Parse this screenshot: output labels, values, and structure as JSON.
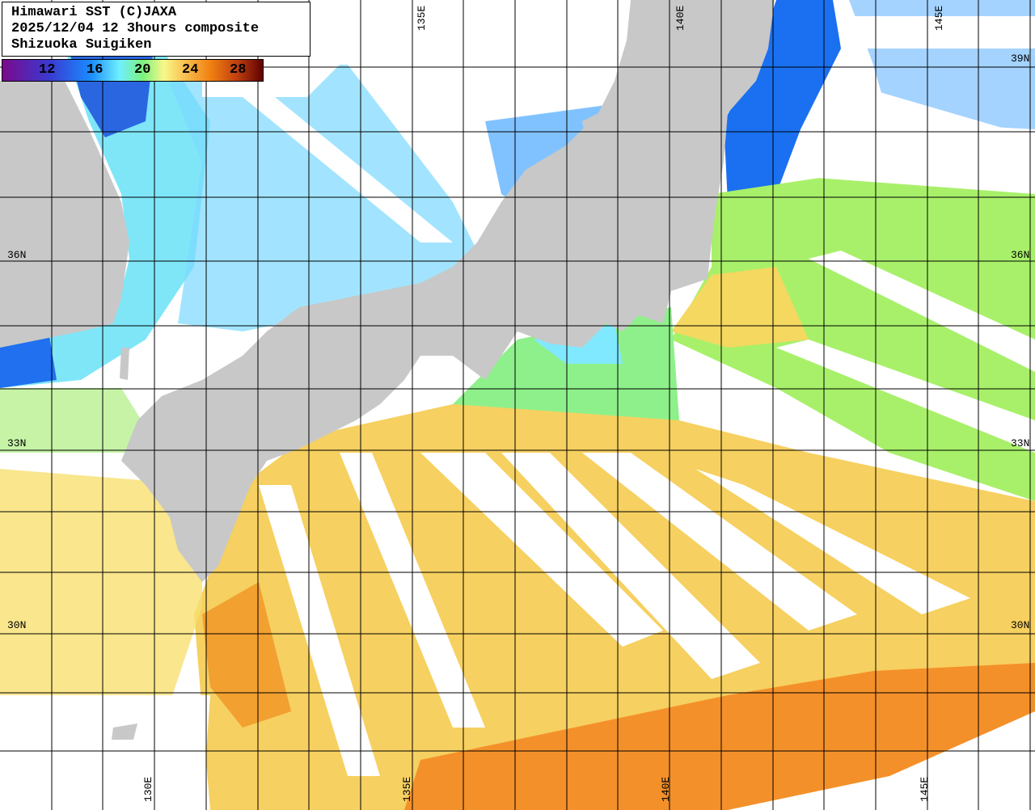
{
  "title": {
    "line1": "Himawari SST (C)JAXA",
    "line2": "2025/12/04 12 3hours composite",
    "line3": "Shizuoka Suigiken"
  },
  "colorbar": {
    "labels": [
      "12",
      "16",
      "20",
      "24",
      "28"
    ],
    "unit_colors": {
      "cold": "#7a0a8c",
      "mid": "#7cf07c",
      "warm": "#f08010",
      "hot": "#600000"
    }
  },
  "lat_labels": {
    "left": [
      "36N",
      "33N",
      "30N"
    ],
    "right": [
      "39N",
      "36N",
      "33N",
      "30N"
    ]
  },
  "lon_labels": {
    "top": [
      "135E",
      "140E",
      "145E"
    ],
    "bottom": [
      "130E",
      "135E",
      "140E",
      "145E"
    ]
  },
  "colors": {
    "land": "#c8c8c8",
    "cloud": "#ffffff",
    "grid": "#000000"
  }
}
